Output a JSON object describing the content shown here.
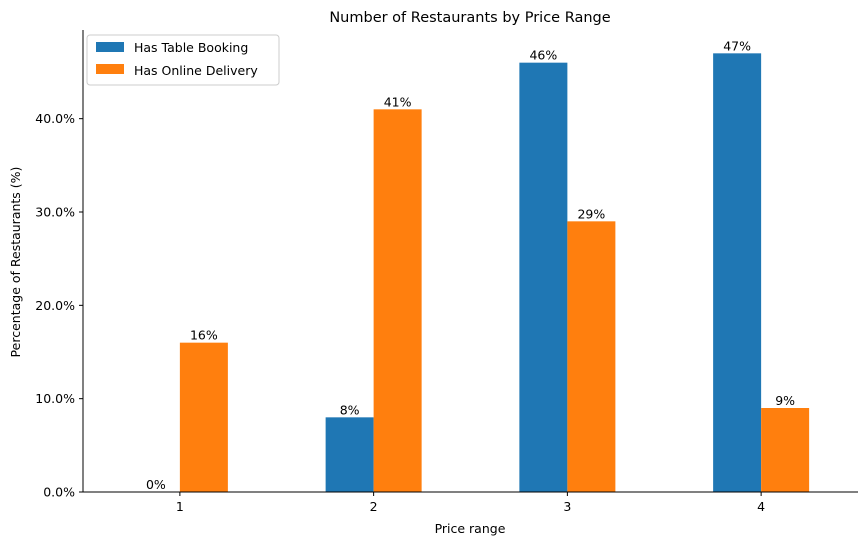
{
  "chart_data": {
    "type": "bar",
    "title": "Number of Restaurants by Price Range",
    "xlabel": "Price range",
    "ylabel": "Percentage of Restaurants (%)",
    "categories": [
      "1",
      "2",
      "3",
      "4"
    ],
    "ylim": [
      0,
      49.5
    ],
    "yticks": [
      0,
      10,
      20,
      30,
      40
    ],
    "ytick_labels": [
      "0.0%",
      "10.0%",
      "20.0%",
      "30.0%",
      "40.0%"
    ],
    "series": [
      {
        "name": "Has Table Booking",
        "color": "#1f77b4",
        "values": [
          0,
          8,
          46,
          47
        ],
        "labels": [
          "0%",
          "8%",
          "46%",
          "47%"
        ]
      },
      {
        "name": "Has Online Delivery",
        "color": "#ff7f0e",
        "values": [
          16,
          41,
          29,
          9
        ],
        "labels": [
          "16%",
          "41%",
          "29%",
          "9%"
        ]
      }
    ],
    "legend_position": "top-left",
    "grid": false
  }
}
